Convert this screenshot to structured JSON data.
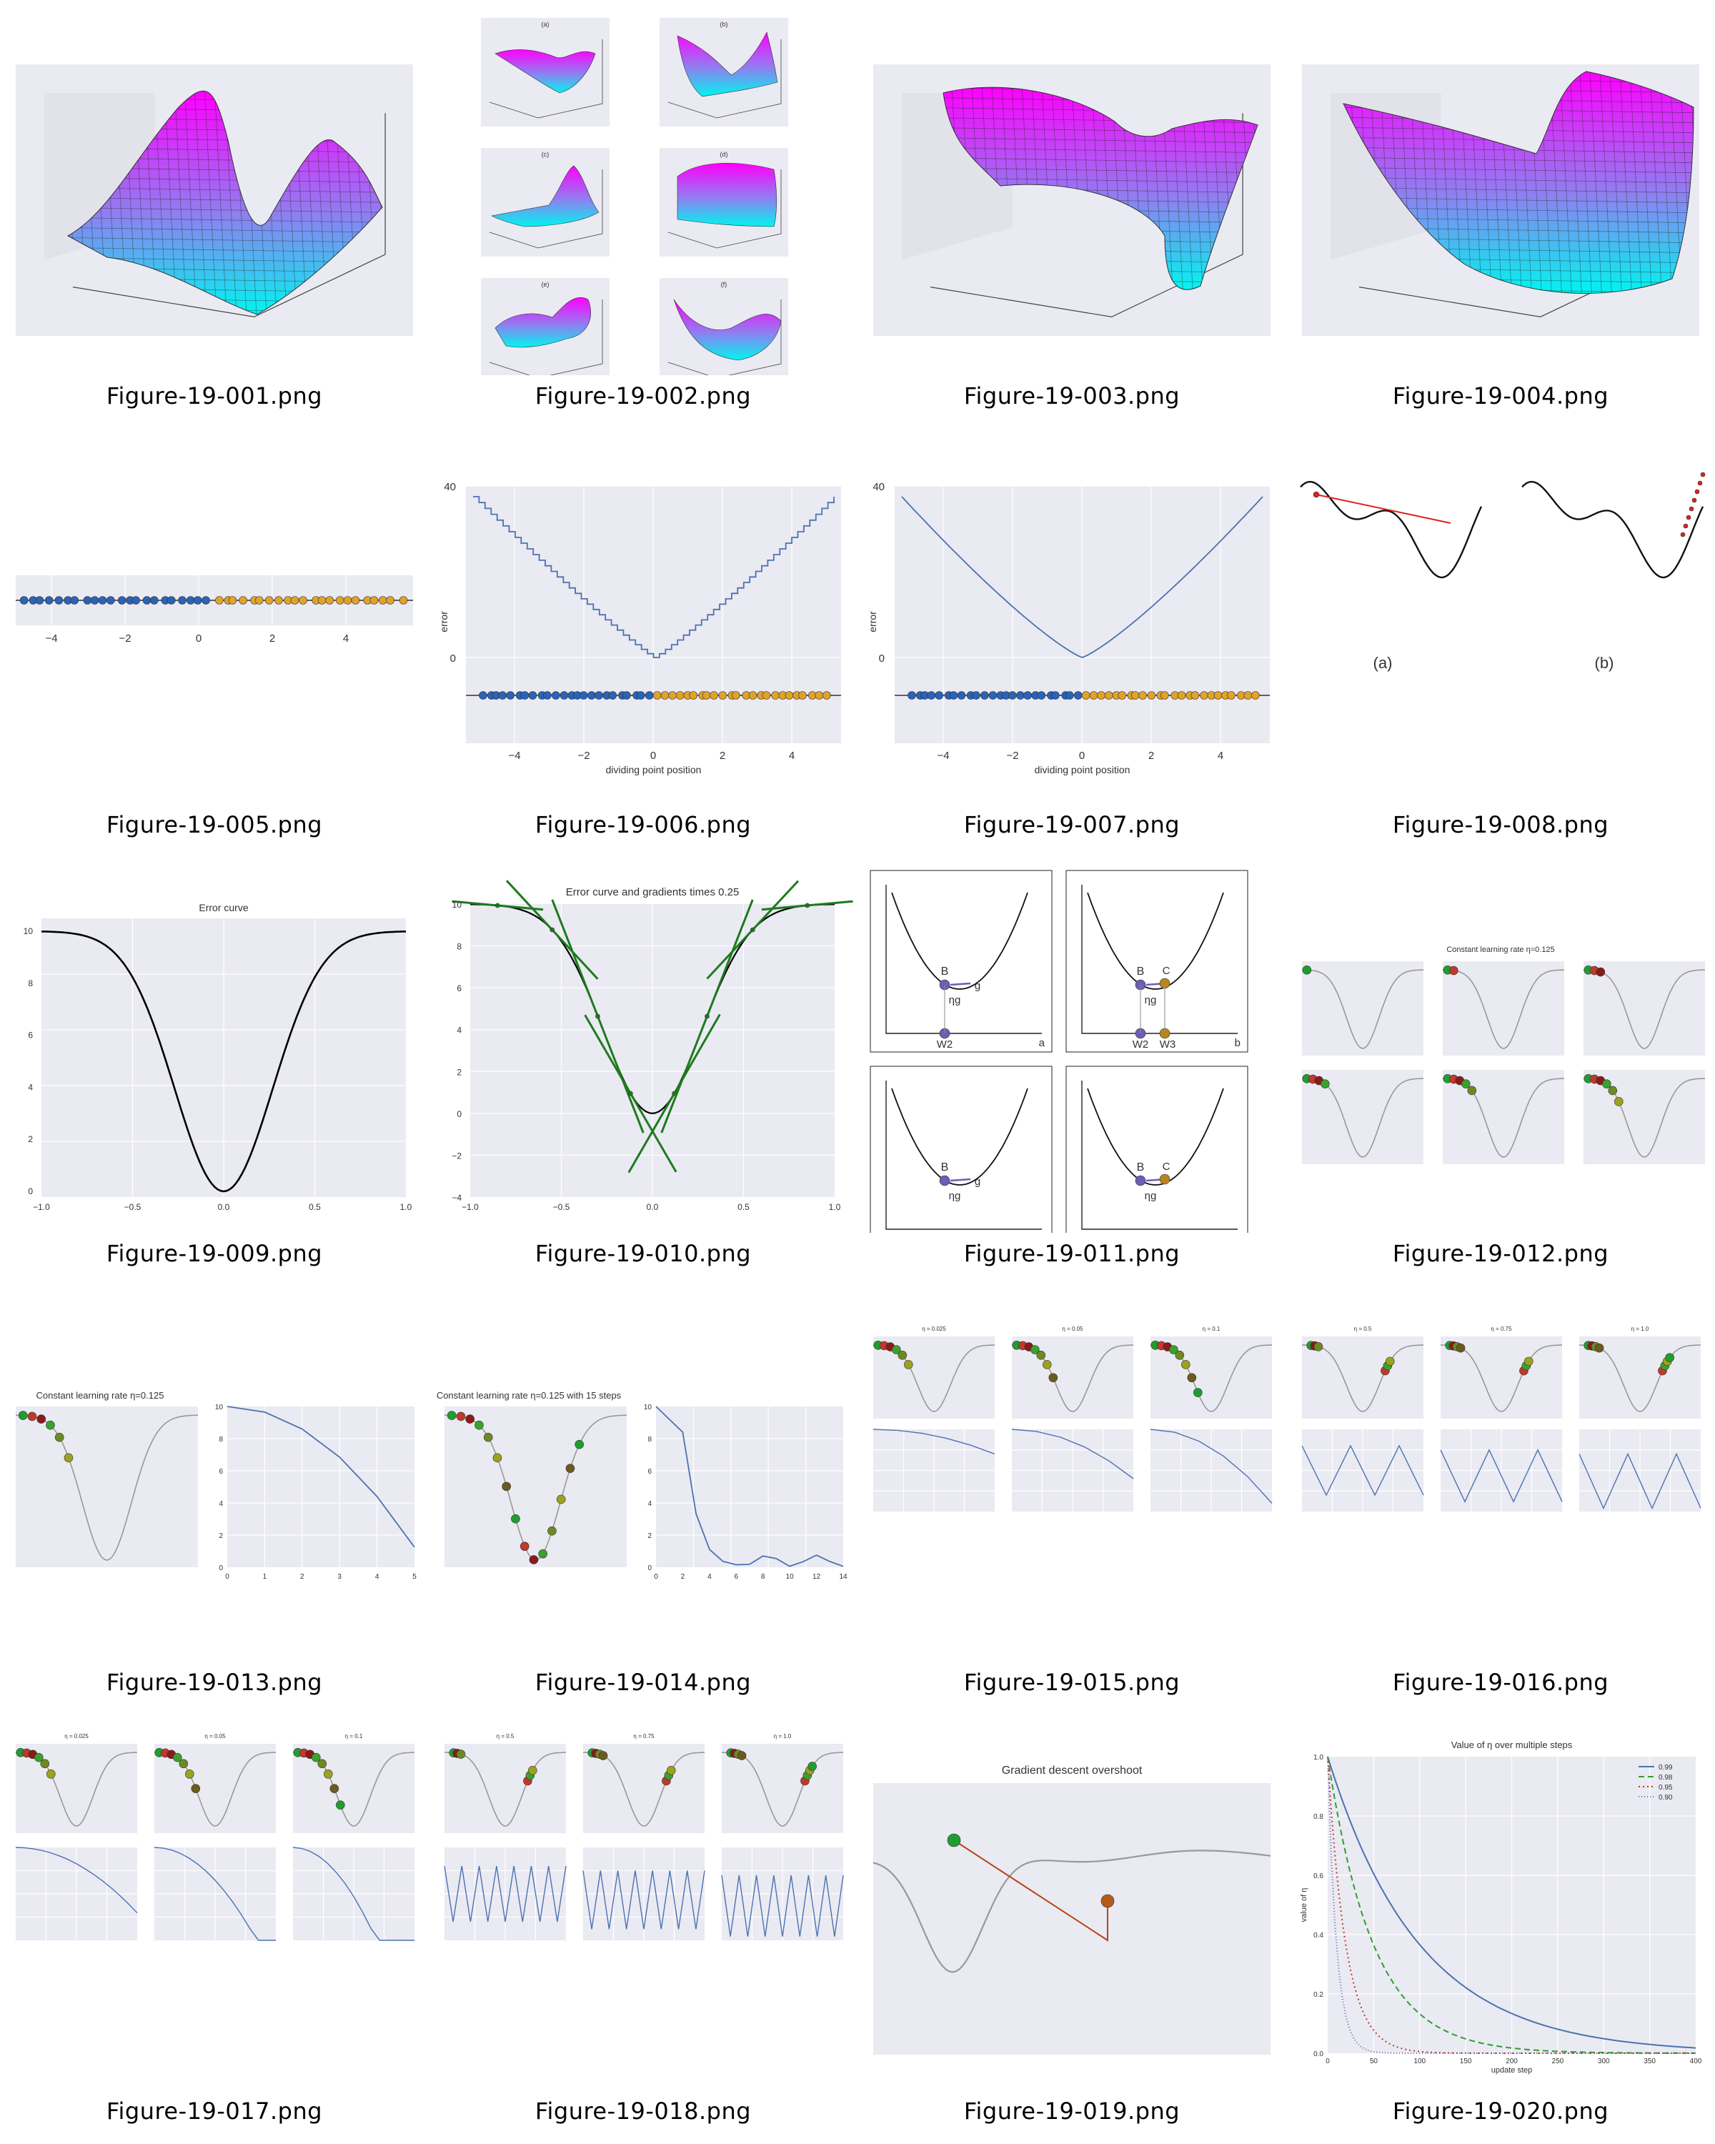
{
  "files": [
    {
      "name": "Figure-19-001.png",
      "kind": "surface3d"
    },
    {
      "name": "Figure-19-002.png",
      "kind": "surface-grid",
      "labels": [
        "(a)",
        "(b)",
        "(c)",
        "(d)",
        "(e)",
        "(f)"
      ]
    },
    {
      "name": "Figure-19-003.png",
      "kind": "surface3d"
    },
    {
      "name": "Figure-19-004.png",
      "kind": "surface3d"
    },
    {
      "name": "Figure-19-005.png",
      "kind": "dots-line",
      "ticks": [
        "−4",
        "−2",
        "0",
        "2",
        "4"
      ]
    },
    {
      "name": "Figure-19-006.png",
      "kind": "error-step",
      "ylabel": "error",
      "xlabel": "dividing point position",
      "yticks": [
        "40",
        "0"
      ],
      "xticks": [
        "−4",
        "−2",
        "0",
        "2",
        "4"
      ]
    },
    {
      "name": "Figure-19-007.png",
      "kind": "error-smooth",
      "ylabel": "error",
      "xlabel": "dividing point position",
      "yticks": [
        "40",
        "0"
      ],
      "xticks": [
        "−4",
        "−2",
        "0",
        "2",
        "4"
      ]
    },
    {
      "name": "Figure-19-008.png",
      "kind": "curve-pair",
      "labels": [
        "(a)",
        "(b)"
      ]
    },
    {
      "name": "Figure-19-009.png",
      "kind": "error-curve",
      "title": "Error curve",
      "yticks": [
        "10",
        "8",
        "6",
        "4",
        "2",
        "0"
      ],
      "xticks": [
        "−1.0",
        "−0.5",
        "0.0",
        "0.5",
        "1.0"
      ]
    },
    {
      "name": "Figure-19-010.png",
      "kind": "gradients",
      "title": "Error curve and gradients times 0.25",
      "yticks": [
        "10",
        "8",
        "6",
        "4",
        "2",
        "0",
        "−2",
        "−4"
      ],
      "xticks": [
        "−1.0",
        "−0.5",
        "0.0",
        "0.5",
        "1.0"
      ]
    },
    {
      "name": "Figure-19-011.png",
      "kind": "four-panel",
      "panels": [
        {
          "id": "a",
          "labels": [
            "B",
            "g",
            "ηg",
            "W2"
          ]
        },
        {
          "id": "b",
          "labels": [
            "B",
            "C",
            "ηg",
            "W2",
            "W3"
          ]
        },
        {
          "id": "c",
          "labels": [
            "B",
            "g",
            "ηg"
          ]
        },
        {
          "id": "d",
          "labels": [
            "B",
            "C",
            "ηg"
          ]
        }
      ]
    },
    {
      "name": "Figure-19-012.png",
      "kind": "six-steps",
      "title": "Constant learning rate η=0.125"
    },
    {
      "name": "Figure-19-013.png",
      "kind": "steps-and-loss",
      "title": "Constant learning rate η=0.125",
      "xticks": [
        "0",
        "1",
        "2",
        "3",
        "4",
        "5"
      ],
      "yticks": [
        "10",
        "8",
        "6",
        "4",
        "2",
        "0"
      ]
    },
    {
      "name": "Figure-19-014.png",
      "kind": "steps-and-loss",
      "title": "Constant learning rate η=0.125 with 15 steps",
      "xticks": [
        "0",
        "2",
        "4",
        "6",
        "8",
        "10",
        "12",
        "14"
      ],
      "yticks": [
        "10",
        "8",
        "6",
        "4",
        "2",
        "0"
      ]
    },
    {
      "name": "Figure-19-015.png",
      "kind": "three-rates",
      "titles": [
        "η = 0.025",
        "η = 0.05",
        "η = 0.1"
      ]
    },
    {
      "name": "Figure-19-016.png",
      "kind": "three-rates",
      "titles": [
        "η = 0.5",
        "η = 0.75",
        "η = 1.0"
      ]
    },
    {
      "name": "Figure-19-017.png",
      "kind": "three-rates",
      "titles": [
        "η = 0.025",
        "η = 0.05",
        "η = 0.1"
      ]
    },
    {
      "name": "Figure-19-018.png",
      "kind": "three-rates",
      "titles": [
        "η = 0.5",
        "η = 0.75",
        "η = 1.0"
      ]
    },
    {
      "name": "Figure-19-019.png",
      "kind": "overshoot",
      "title": "Gradient descent overshoot"
    },
    {
      "name": "Figure-19-020.png",
      "kind": "decay",
      "title": "Value of η over multiple steps",
      "xlabel": "update step",
      "ylabel": "value of η",
      "legend": [
        "0.99",
        "0.98",
        "0.95",
        "0.90"
      ],
      "xticks": [
        "0",
        "50",
        "100",
        "150",
        "200",
        "250",
        "300",
        "350",
        "400"
      ],
      "yticks": [
        "1.0",
        "0.8",
        "0.6",
        "0.4",
        "0.2",
        "0.0"
      ]
    }
  ]
}
